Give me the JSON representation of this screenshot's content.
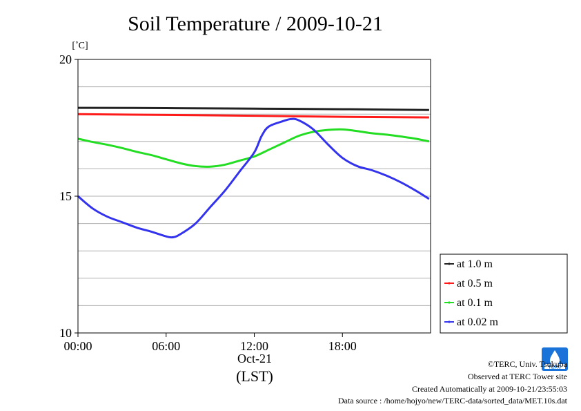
{
  "chart_data": {
    "type": "line",
    "title": "Soil Temperature / 2009-10-21",
    "ylabel": "[˚C]",
    "xlabel": "(LST)",
    "x_date_label": "Oct-21",
    "ylim": [
      10,
      20
    ],
    "xlim_hours": [
      0,
      24
    ],
    "y_ticks": [
      {
        "value": 10,
        "label": "10"
      },
      {
        "value": 15,
        "label": "15"
      },
      {
        "value": 20,
        "label": "20"
      }
    ],
    "y_gridlines": [
      11,
      12,
      13,
      14,
      15,
      16,
      17,
      18,
      19
    ],
    "x_ticks": [
      {
        "value": 0,
        "label": "00:00"
      },
      {
        "value": 6,
        "label": "06:00"
      },
      {
        "value": 12,
        "label": "12:00"
      },
      {
        "value": 18,
        "label": "18:00"
      }
    ],
    "legend_position": "right",
    "series": [
      {
        "name": "at 1.0 m",
        "color": "#222222",
        "points": [
          [
            0,
            18.23
          ],
          [
            6,
            18.22
          ],
          [
            12,
            18.2
          ],
          [
            18,
            18.18
          ],
          [
            23.9,
            18.15
          ]
        ]
      },
      {
        "name": "at 0.5 m",
        "color": "#ff1a1a",
        "points": [
          [
            0,
            18.0
          ],
          [
            6,
            17.97
          ],
          [
            12,
            17.94
          ],
          [
            18,
            17.9
          ],
          [
            23.9,
            17.88
          ]
        ]
      },
      {
        "name": "at 0.1 m",
        "color": "#22dd22",
        "points": [
          [
            0,
            17.1
          ],
          [
            1,
            16.98
          ],
          [
            2,
            16.88
          ],
          [
            3,
            16.76
          ],
          [
            4,
            16.62
          ],
          [
            5,
            16.5
          ],
          [
            6,
            16.35
          ],
          [
            7,
            16.2
          ],
          [
            8,
            16.1
          ],
          [
            9,
            16.08
          ],
          [
            10,
            16.15
          ],
          [
            11,
            16.3
          ],
          [
            12,
            16.45
          ],
          [
            13,
            16.7
          ],
          [
            14,
            16.95
          ],
          [
            15,
            17.2
          ],
          [
            16,
            17.35
          ],
          [
            17,
            17.42
          ],
          [
            18,
            17.44
          ],
          [
            19,
            17.38
          ],
          [
            20,
            17.3
          ],
          [
            21,
            17.25
          ],
          [
            22,
            17.18
          ],
          [
            23,
            17.1
          ],
          [
            23.9,
            17.0
          ]
        ]
      },
      {
        "name": "at 0.02 m",
        "color": "#3333ee",
        "points": [
          [
            0,
            15.0
          ],
          [
            1,
            14.55
          ],
          [
            2,
            14.25
          ],
          [
            3,
            14.05
          ],
          [
            4,
            13.85
          ],
          [
            5,
            13.7
          ],
          [
            6,
            13.53
          ],
          [
            6.5,
            13.5
          ],
          [
            7,
            13.62
          ],
          [
            8,
            14.0
          ],
          [
            9,
            14.6
          ],
          [
            10,
            15.2
          ],
          [
            11,
            15.9
          ],
          [
            12,
            16.6
          ],
          [
            12.5,
            17.2
          ],
          [
            13,
            17.55
          ],
          [
            14,
            17.75
          ],
          [
            14.5,
            17.82
          ],
          [
            15,
            17.78
          ],
          [
            16,
            17.45
          ],
          [
            17,
            16.9
          ],
          [
            18,
            16.4
          ],
          [
            19,
            16.1
          ],
          [
            20,
            15.95
          ],
          [
            21,
            15.75
          ],
          [
            22,
            15.5
          ],
          [
            23,
            15.2
          ],
          [
            23.9,
            14.9
          ]
        ]
      }
    ]
  },
  "credits": {
    "copyright": "©TERC, Univ. Tsukuba",
    "site": "Observed at TERC Tower site",
    "created": "Created Automatically at 2009-10-21/23:55:03",
    "source": "Data source : /home/hojyo/new/TERC-data/sorted_data/MET.10s.dat",
    "logo_text": "TERC"
  }
}
